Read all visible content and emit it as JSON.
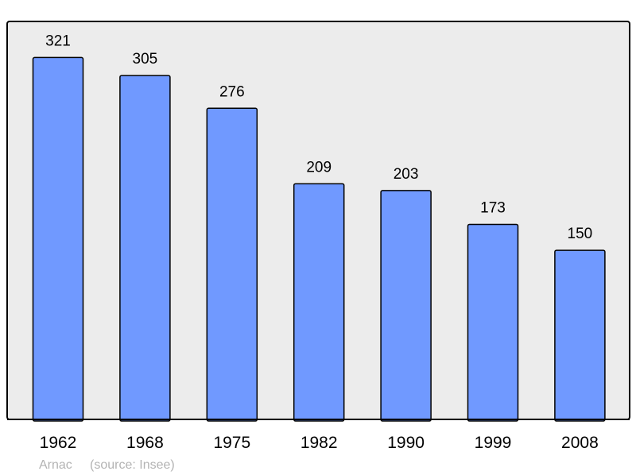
{
  "chart_data": {
    "type": "bar",
    "categories": [
      "1962",
      "1968",
      "1975",
      "1982",
      "1990",
      "1999",
      "2008"
    ],
    "values": [
      321,
      305,
      276,
      209,
      203,
      173,
      150
    ],
    "title": "",
    "xlabel": "",
    "ylabel": "",
    "ylim": [
      0,
      353
    ],
    "grid": false,
    "data_labels": true,
    "colors": {
      "bar": "#7099ff",
      "plot_background": "#ececec",
      "outline": "#000000"
    }
  },
  "caption": {
    "place": "Arnac",
    "source": "(source: Insee)"
  }
}
